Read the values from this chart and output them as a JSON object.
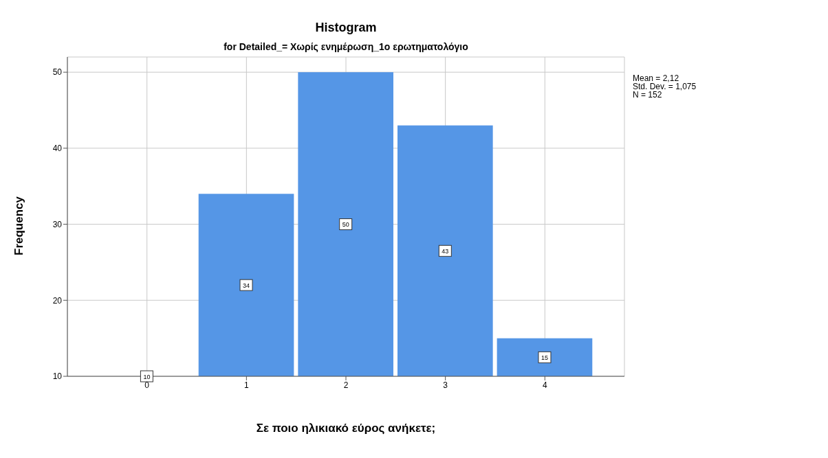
{
  "chart_data": {
    "type": "histogram",
    "title": "Histogram",
    "subtitle": "for Detailed_= Χωρίς ενημέρωση_1ο ερωτηματολόγιο",
    "xlabel": "Σε ποιο ηλικιακό εύρος ανήκετε;",
    "ylabel": "Frequency",
    "bins": [
      -0.5,
      0.5,
      1.5,
      2.5,
      3.5,
      4.5
    ],
    "values": [
      10,
      34,
      50,
      43,
      15
    ],
    "color": "#5596e6",
    "xlim": [
      -0.8,
      4.8
    ],
    "xticks": [
      0,
      1,
      2,
      3,
      4
    ],
    "ylim": [
      10,
      52
    ],
    "yticks": [
      10,
      20,
      30,
      40,
      50
    ],
    "grid": true,
    "data_labels": true,
    "annotations": [
      "Mean = 2,12",
      "Std. Dev. = 1,075",
      "N = 152"
    ]
  }
}
